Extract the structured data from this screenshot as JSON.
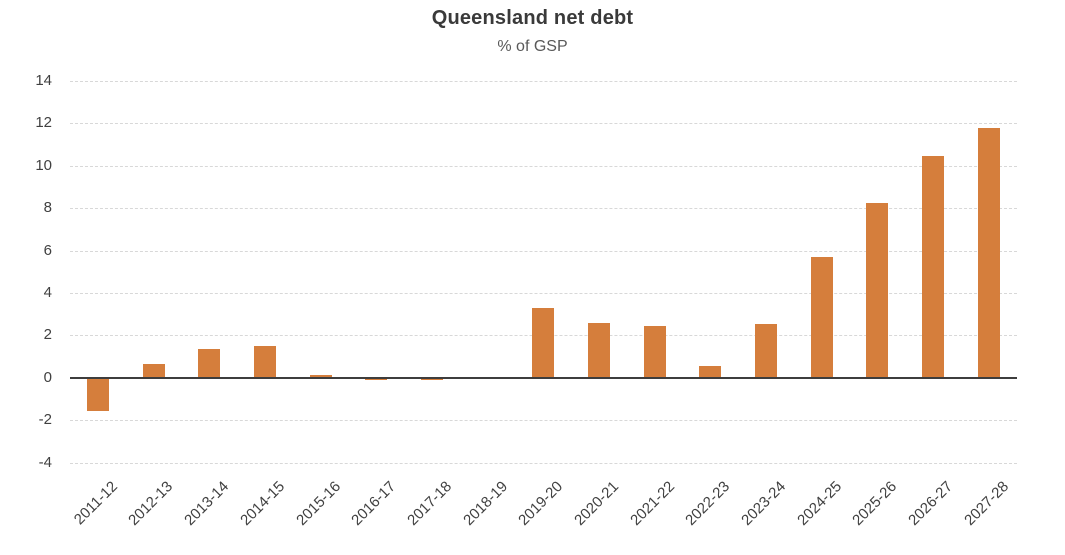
{
  "chart_data": {
    "type": "bar",
    "title": "Queensland net debt",
    "subtitle": "% of GSP",
    "xlabel": "",
    "ylabel": "",
    "categories": [
      "2011-12",
      "2012-13",
      "2013-14",
      "2014-15",
      "2015-16",
      "2016-17",
      "2017-18",
      "2018-19",
      "2019-20",
      "2020-21",
      "2021-22",
      "2022-23",
      "2023-24",
      "2024-25",
      "2025-26",
      "2026-27",
      "2027-28"
    ],
    "values": [
      -1.55,
      0.65,
      1.35,
      1.5,
      0.15,
      -0.1,
      -0.1,
      -0.05,
      3.3,
      2.6,
      2.45,
      0.55,
      2.55,
      5.7,
      8.25,
      10.45,
      11.8
    ],
    "ylim": [
      -4,
      14
    ],
    "yticks": [
      14,
      12,
      10,
      8,
      6,
      4,
      2,
      0,
      -2,
      -4
    ],
    "grid": true,
    "legend": "none",
    "bar_color": "#D57E3C",
    "gridline_color": "#D8D8D8",
    "zero_line_color": "#3D3D3D",
    "title_color": "#3A3A3A",
    "subtitle_color": "#595959",
    "tick_label_color": "#404040"
  }
}
